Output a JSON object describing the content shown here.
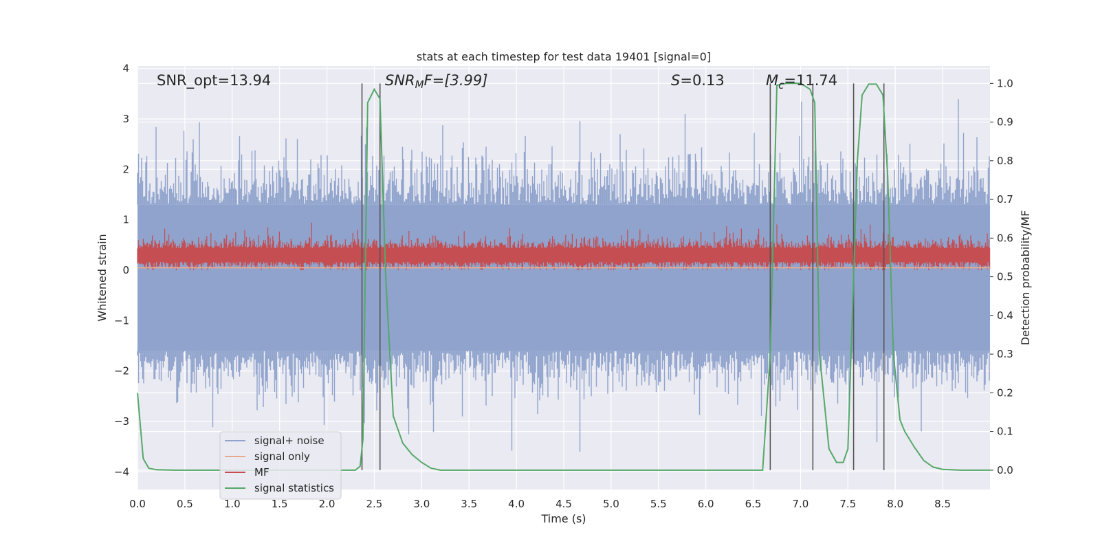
{
  "chart_data": {
    "type": "line",
    "title": "stats at each timestep for test data 19401 [signal=0]",
    "xlabel": "Time (s)",
    "ylabel": "Whitened strain",
    "ylabel_right": "Detection probability/MF",
    "xlim": [
      0,
      9.0
    ],
    "ylim": [
      -4.35,
      4.05
    ],
    "ylim_right": [
      -0.05,
      1.045
    ],
    "x_ticks": [
      "0.0",
      "0.5",
      "1.0",
      "1.5",
      "2.0",
      "2.5",
      "3.0",
      "3.5",
      "4.0",
      "4.5",
      "5.0",
      "5.5",
      "6.0",
      "6.5",
      "7.0",
      "7.5",
      "8.0",
      "8.5"
    ],
    "y_ticks": [
      "4",
      "3",
      "2",
      "1",
      "0",
      "−1",
      "−2",
      "−3",
      "−4"
    ],
    "y_ticks_right": [
      "1.0",
      "0.9",
      "0.8",
      "0.7",
      "0.6",
      "0.5",
      "0.4",
      "0.3",
      "0.2",
      "0.1",
      "0.0"
    ],
    "annotations": {
      "snr_opt": "SNR_opt=13.94",
      "snr_mf_base": "SNR",
      "snr_mf_sub": "M",
      "snr_mf_rest": "F=[3.99]",
      "s_italic": "S",
      "s_rest": "=0.13",
      "mc_base": "M",
      "mc_sub": "c",
      "mc_rest": "=11.74"
    },
    "legend": [
      "signal+ noise",
      "signal only",
      "MF",
      "signal statistics"
    ],
    "colors": {
      "noise": "#8fa3cc",
      "signal": "#e8a98c",
      "mf": "#c44e52",
      "stat": "#55a868",
      "vline": "#555555",
      "bg": "#eaeaf2"
    },
    "series": [
      {
        "name": "signal+ noise",
        "description_values": "noise envelope approx between -2.3 and 2.4 with spikes up to 3.4 and down to -3.6",
        "band_upper": 1.3,
        "band_lower": -1.6
      },
      {
        "name": "signal only",
        "values_const": 0.05
      },
      {
        "name": "MF",
        "band_center": 0.3,
        "band_half": 0.25
      },
      {
        "name": "signal statistics",
        "axis": "right",
        "x": [
          0.0,
          0.06,
          0.12,
          0.2,
          0.4,
          0.7,
          1.0,
          1.5,
          2.0,
          2.3,
          2.35,
          2.38,
          2.43,
          2.5,
          2.56,
          2.62,
          2.7,
          2.8,
          2.9,
          3.0,
          3.1,
          3.2,
          3.5,
          4.0,
          5.0,
          6.0,
          6.6,
          6.68,
          6.75,
          6.85,
          7.0,
          7.1,
          7.15,
          7.2,
          7.3,
          7.38,
          7.45,
          7.5,
          7.56,
          7.6,
          7.65,
          7.72,
          7.8,
          7.87,
          7.92,
          7.98,
          8.05,
          8.1,
          8.15,
          8.2,
          8.3,
          8.4,
          8.5,
          8.7,
          9.0
        ],
        "values": [
          0.2,
          0.03,
          0.005,
          0.001,
          0.0,
          0.0,
          0.0,
          0.0,
          0.0,
          0.0,
          0.01,
          0.08,
          0.95,
          0.985,
          0.96,
          0.5,
          0.14,
          0.07,
          0.04,
          0.02,
          0.005,
          0.0,
          0.0,
          0.0,
          0.0,
          0.0,
          0.0,
          0.3,
          0.995,
          1.0,
          1.0,
          0.985,
          0.95,
          0.3,
          0.055,
          0.02,
          0.02,
          0.055,
          0.5,
          0.8,
          0.97,
          0.998,
          0.998,
          0.97,
          0.76,
          0.3,
          0.13,
          0.1,
          0.08,
          0.06,
          0.025,
          0.008,
          0.002,
          0.0,
          0.0
        ]
      }
    ],
    "vertical_lines": [
      2.37,
      2.56,
      6.68,
      7.13,
      7.56,
      7.88
    ]
  }
}
